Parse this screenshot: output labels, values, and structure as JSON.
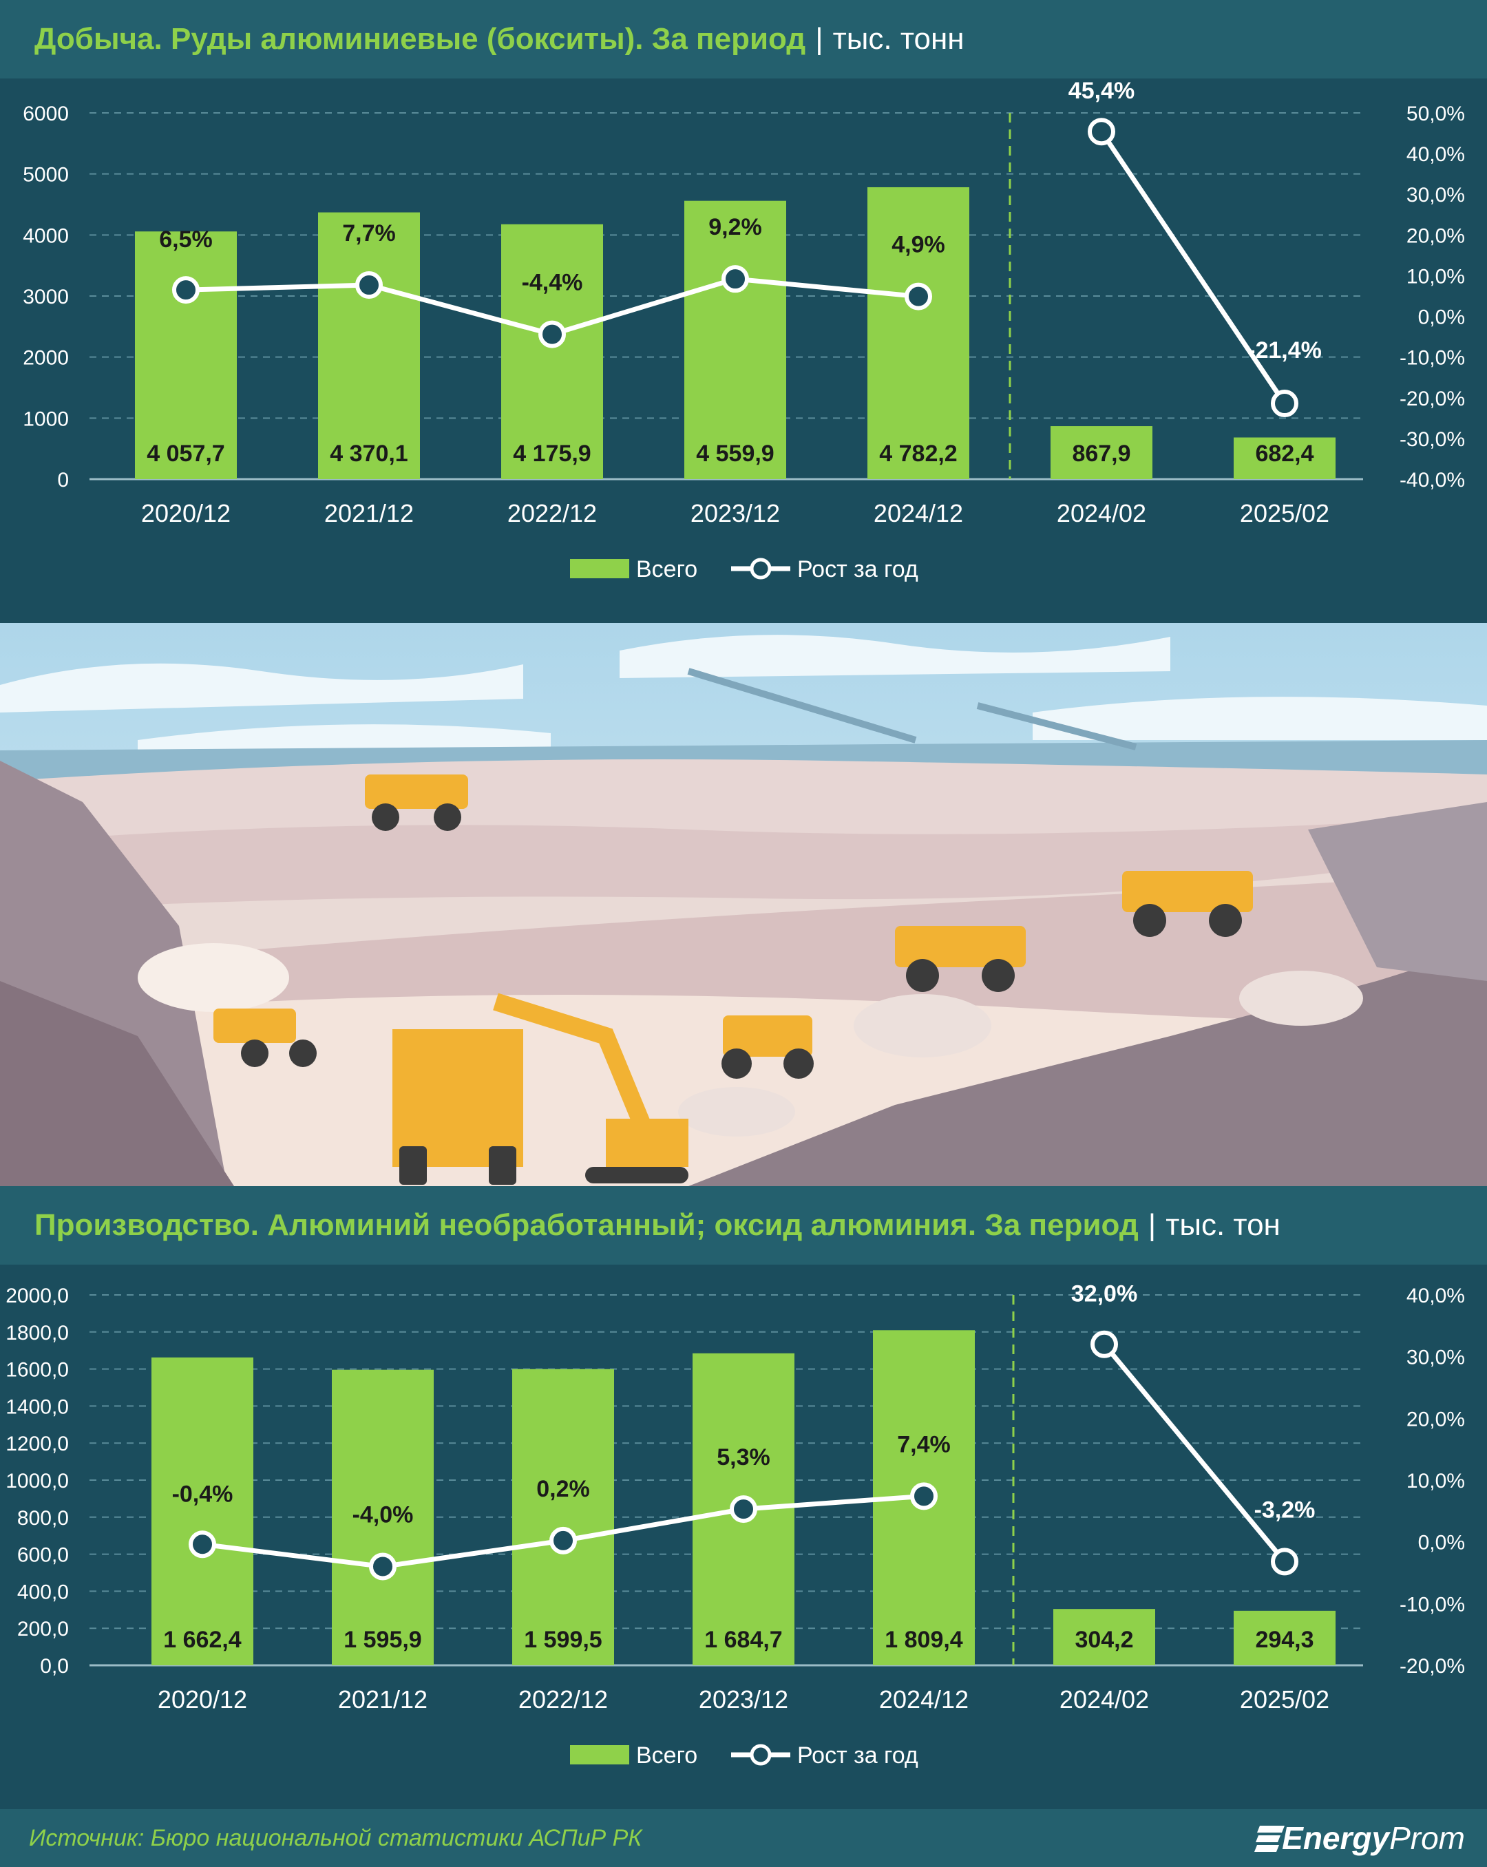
{
  "colors": {
    "bar": "#8fd14a",
    "line": "#ffffff",
    "marker_fill": "#1b4d5d",
    "grid": "#5a8c9a",
    "divider": "#8fd14a",
    "bg": "#1b4d5d",
    "title_bg": "#24606e"
  },
  "chart_data": [
    {
      "type": "bar",
      "title": "Добыча. Руды алюминиевые (бокситы). За период",
      "unit": "тыс. тонн",
      "categories": [
        "2020/12",
        "2021/12",
        "2022/12",
        "2023/12",
        "2024/12",
        "2024/02",
        "2025/02"
      ],
      "series": [
        {
          "name": "Всего",
          "type": "bar",
          "axis": "left",
          "values": [
            4057.7,
            4370.1,
            4175.9,
            4559.9,
            4782.2,
            867.9,
            682.4
          ],
          "labels": [
            "4 057,7",
            "4 370,1",
            "4 175,9",
            "4 559,9",
            "4 782,2",
            "867,9",
            "682,4"
          ]
        },
        {
          "name": "Рост за год",
          "type": "line",
          "axis": "right",
          "values": [
            6.5,
            7.7,
            -4.4,
            9.2,
            4.9,
            45.4,
            -21.4
          ],
          "labels": [
            "6,5%",
            "7,7%",
            "-4,4%",
            "9,2%",
            "4,9%",
            "45,4%",
            "-21,4%"
          ]
        }
      ],
      "left_axis": {
        "min": 0,
        "max": 6000,
        "ticks": [
          0,
          1000,
          2000,
          3000,
          4000,
          5000,
          6000
        ],
        "tick_labels": [
          "0",
          "1000",
          "2000",
          "3000",
          "4000",
          "5000",
          "6000"
        ]
      },
      "right_axis": {
        "min": -40,
        "max": 50,
        "ticks": [
          -40,
          -30,
          -20,
          -10,
          0,
          10,
          20,
          30,
          40,
          50
        ],
        "tick_labels": [
          "-40,0%",
          "-30,0%",
          "-20,0%",
          "-10,0%",
          "0,0%",
          "10,0%",
          "20,0%",
          "30,0%",
          "40,0%",
          "50,0%"
        ]
      },
      "line_groups": [
        [
          0,
          1,
          2,
          3,
          4
        ],
        [
          5,
          6
        ]
      ],
      "divider_after_index": 4,
      "grid": true,
      "legend": {
        "position": "bottom",
        "items": [
          "Всего",
          "Рост за год"
        ]
      }
    },
    {
      "type": "bar",
      "title": "Производство. Алюминий необработанный; оксид алюминия. За период",
      "unit": "тыс. тон",
      "categories": [
        "2020/12",
        "2021/12",
        "2022/12",
        "2023/12",
        "2024/12",
        "2024/02",
        "2025/02"
      ],
      "series": [
        {
          "name": "Всего",
          "type": "bar",
          "axis": "left",
          "values": [
            1662.4,
            1595.9,
            1599.5,
            1684.7,
            1809.4,
            304.2,
            294.3
          ],
          "labels": [
            "1 662,4",
            "1 595,9",
            "1 599,5",
            "1 684,7",
            "1 809,4",
            "304,2",
            "294,3"
          ]
        },
        {
          "name": "Рост за год",
          "type": "line",
          "axis": "right",
          "values": [
            -0.4,
            -4.0,
            0.2,
            5.3,
            7.4,
            32.0,
            -3.2
          ],
          "labels": [
            "-0,4%",
            "-4,0%",
            "0,2%",
            "5,3%",
            "7,4%",
            "32,0%",
            "-3,2%"
          ]
        }
      ],
      "left_axis": {
        "min": 0,
        "max": 2000,
        "ticks": [
          0,
          200,
          400,
          600,
          800,
          1000,
          1200,
          1400,
          1600,
          1800,
          2000
        ],
        "tick_labels": [
          "0,0",
          "200,0",
          "400,0",
          "600,0",
          "800,0",
          "1000,0",
          "1200,0",
          "1400,0",
          "1600,0",
          "1800,0",
          "2000,0"
        ]
      },
      "right_axis": {
        "min": -20,
        "max": 40,
        "ticks": [
          -20,
          -10,
          0,
          10,
          20,
          30,
          40
        ],
        "tick_labels": [
          "-20,0%",
          "-10,0%",
          "0,0%",
          "10,0%",
          "20,0%",
          "30,0%",
          "40,0%"
        ]
      },
      "line_groups": [
        [
          0,
          1,
          2,
          3,
          4
        ],
        [
          5,
          6
        ]
      ],
      "divider_after_index": 4,
      "grid": true,
      "legend": {
        "position": "bottom",
        "items": [
          "Всего",
          "Рост за год"
        ]
      }
    }
  ],
  "footer": {
    "source": "Источник: Бюро национальной статистики АСПиР РК",
    "logo_bold": "Energy",
    "logo_light": "Prom"
  }
}
